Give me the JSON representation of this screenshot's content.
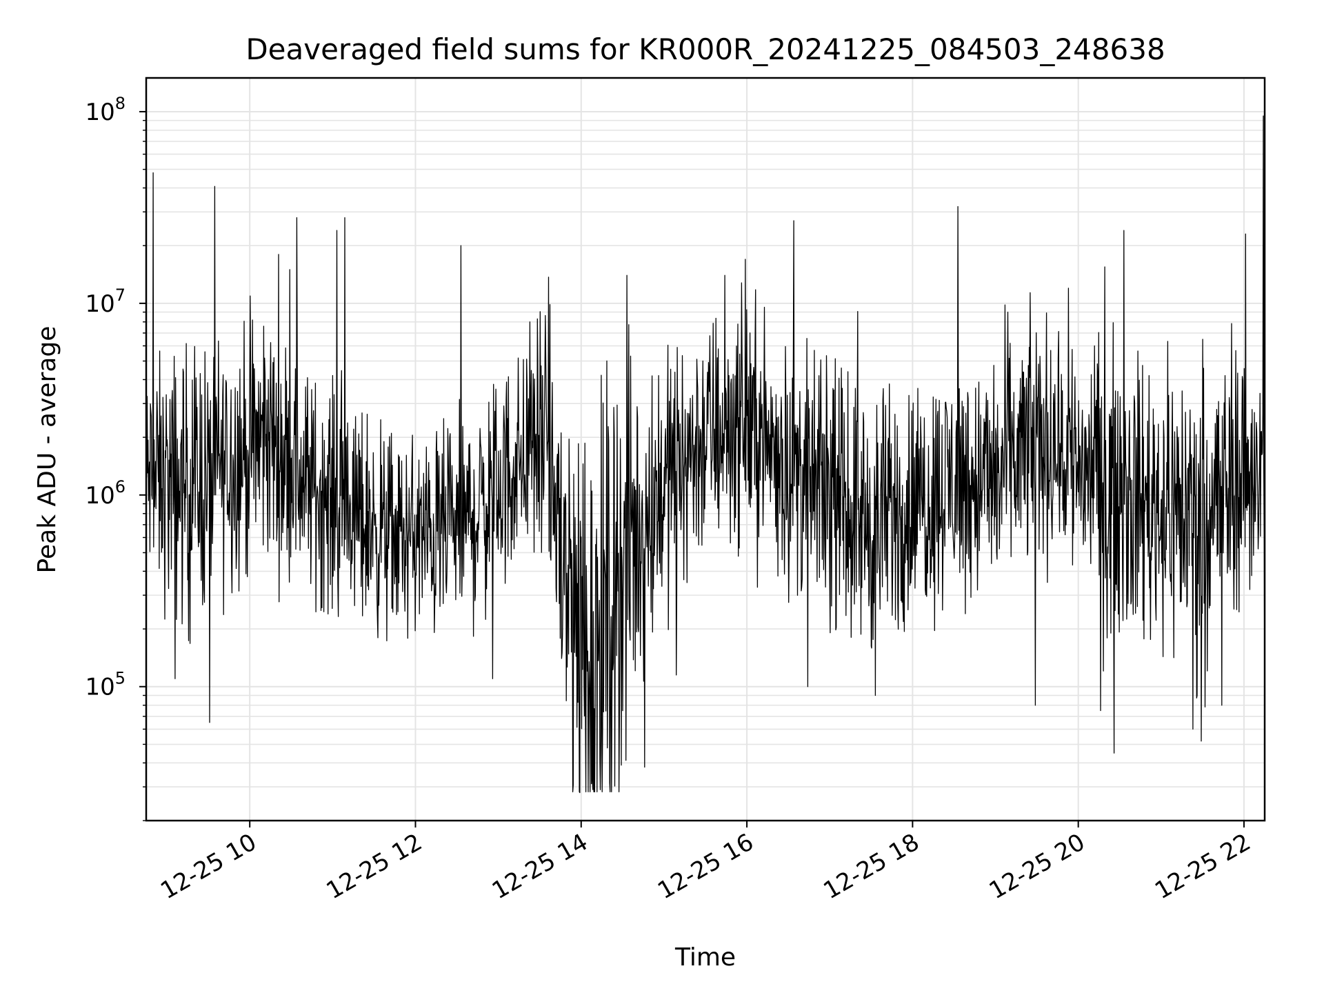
{
  "chart_data": {
    "type": "line",
    "title": "Deaveraged field sums for KR000R_20241225_084503_248638",
    "xlabel": "Time",
    "ylabel": "Peak ADU - average",
    "yscale": "log",
    "grid": true,
    "line_color": "#000000",
    "xlim": [
      "2024-12-25 08:45",
      "2024-12-25 22:15"
    ],
    "ylim": [
      20000,
      150000000
    ],
    "x_ticks": [
      "12-25 10",
      "12-25 12",
      "12-25 14",
      "12-25 16",
      "12-25 18",
      "12-25 20",
      "12-25 22"
    ],
    "y_ticks": [
      {
        "base": "10",
        "exp": "5"
      },
      {
        "base": "10",
        "exp": "6"
      },
      {
        "base": "10",
        "exp": "7"
      },
      {
        "base": "10",
        "exp": "8"
      }
    ],
    "envelope": [
      {
        "t": "2024-12-25 08:45",
        "center": 1200000,
        "spread": 0.35
      },
      {
        "t": "2024-12-25 09:15",
        "center": 1100000,
        "spread": 0.45
      },
      {
        "t": "2024-12-25 09:45",
        "center": 1500000,
        "spread": 0.4
      },
      {
        "t": "2024-12-25 10:15",
        "center": 2000000,
        "spread": 0.4
      },
      {
        "t": "2024-12-25 10:45",
        "center": 1100000,
        "spread": 0.35
      },
      {
        "t": "2024-12-25 11:15",
        "center": 800000,
        "spread": 0.35
      },
      {
        "t": "2024-12-25 11:45",
        "center": 600000,
        "spread": 0.32
      },
      {
        "t": "2024-12-25 12:15",
        "center": 600000,
        "spread": 0.32
      },
      {
        "t": "2024-12-25 12:45",
        "center": 800000,
        "spread": 0.35
      },
      {
        "t": "2024-12-25 13:15",
        "center": 1500000,
        "spread": 0.35
      },
      {
        "t": "2024-12-25 13:35",
        "center": 2000000,
        "spread": 0.4
      },
      {
        "t": "2024-12-25 13:50",
        "center": 300000,
        "spread": 0.8
      },
      {
        "t": "2024-12-25 14:10",
        "center": 150000,
        "spread": 0.8
      },
      {
        "t": "2024-12-25 14:35",
        "center": 500000,
        "spread": 0.6
      },
      {
        "t": "2024-12-25 15:00",
        "center": 1200000,
        "spread": 0.4
      },
      {
        "t": "2024-12-25 15:30",
        "center": 2000000,
        "spread": 0.38
      },
      {
        "t": "2024-12-25 16:00",
        "center": 2500000,
        "spread": 0.38
      },
      {
        "t": "2024-12-25 16:30",
        "center": 1400000,
        "spread": 0.38
      },
      {
        "t": "2024-12-25 17:00",
        "center": 1000000,
        "spread": 0.38
      },
      {
        "t": "2024-12-25 17:30",
        "center": 700000,
        "spread": 0.42
      },
      {
        "t": "2024-12-25 18:00",
        "center": 900000,
        "spread": 0.38
      },
      {
        "t": "2024-12-25 18:30",
        "center": 1200000,
        "spread": 0.38
      },
      {
        "t": "2024-12-25 19:00",
        "center": 1200000,
        "spread": 0.38
      },
      {
        "t": "2024-12-25 19:30",
        "center": 2000000,
        "spread": 0.38
      },
      {
        "t": "2024-12-25 20:00",
        "center": 1500000,
        "spread": 0.4
      },
      {
        "t": "2024-12-25 20:30",
        "center": 1000000,
        "spread": 0.45
      },
      {
        "t": "2024-12-25 21:00",
        "center": 900000,
        "spread": 0.45
      },
      {
        "t": "2024-12-25 21:30",
        "center": 800000,
        "spread": 0.5
      },
      {
        "t": "2024-12-25 22:00",
        "center": 1300000,
        "spread": 0.4
      },
      {
        "t": "2024-12-25 22:15",
        "center": 1300000,
        "spread": 0.4
      }
    ],
    "spikes": [
      {
        "t": "2024-12-25 08:50",
        "value": 48000000
      },
      {
        "t": "2024-12-25 09:31",
        "value": 65000
      },
      {
        "t": "2024-12-25 09:06",
        "value": 110000
      },
      {
        "t": "2024-12-25 10:21",
        "value": 18000000
      },
      {
        "t": "2024-12-25 10:29",
        "value": 15000000
      },
      {
        "t": "2024-12-25 10:34",
        "value": 28000000
      },
      {
        "t": "2024-12-25 11:03",
        "value": 24000000
      },
      {
        "t": "2024-12-25 11:09",
        "value": 28000000
      },
      {
        "t": "2024-12-25 12:33",
        "value": 20000000
      },
      {
        "t": "2024-12-25 12:56",
        "value": 110000
      },
      {
        "t": "2024-12-25 13:23",
        "value": 8000000
      },
      {
        "t": "2024-12-25 13:59",
        "value": 28000
      },
      {
        "t": "2024-12-25 14:14",
        "value": 29000
      },
      {
        "t": "2024-12-25 14:33",
        "value": 14000000
      },
      {
        "t": "2024-12-25 14:46",
        "value": 38000
      },
      {
        "t": "2024-12-25 15:09",
        "value": 115000
      },
      {
        "t": "2024-12-25 15:44",
        "value": 14000000
      },
      {
        "t": "2024-12-25 16:34",
        "value": 27000000
      },
      {
        "t": "2024-12-25 16:44",
        "value": 100000
      },
      {
        "t": "2024-12-25 17:33",
        "value": 90000
      },
      {
        "t": "2024-12-25 18:33",
        "value": 32000000
      },
      {
        "t": "2024-12-25 19:09",
        "value": 9000000
      },
      {
        "t": "2024-12-25 19:29",
        "value": 80000
      },
      {
        "t": "2024-12-25 19:53",
        "value": 12000000
      },
      {
        "t": "2024-12-25 20:16",
        "value": 75000
      },
      {
        "t": "2024-12-25 20:26",
        "value": 45000
      },
      {
        "t": "2024-12-25 20:33",
        "value": 24000000
      },
      {
        "t": "2024-12-25 21:23",
        "value": 60000
      },
      {
        "t": "2024-12-25 21:29",
        "value": 52000
      },
      {
        "t": "2024-12-25 21:44",
        "value": 80000
      },
      {
        "t": "2024-12-25 22:01",
        "value": 23000000
      },
      {
        "t": "2024-12-25 22:14",
        "value": 95000000
      },
      {
        "t": "2024-12-25 22:15",
        "value": 90000
      }
    ]
  }
}
